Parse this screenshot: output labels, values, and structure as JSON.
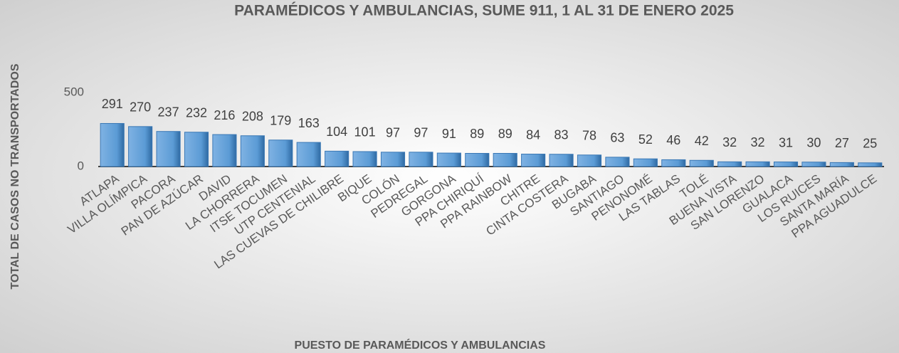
{
  "chart_data": {
    "type": "bar",
    "title": "PARAMÉDICOS Y AMBULANCIAS, SUME 911, 1 AL 31 DE ENERO 2025",
    "x_label": "PUESTO DE PARAMÉDICOS Y AMBULANCIAS",
    "y_label": "TOTAL DE CASOS NO TRANSPORTADOS",
    "categories": [
      "ATLAPA",
      "VILLA OLÍMPICA",
      "PACORA",
      "PAN DE AZÚCAR",
      "DAVID",
      "LA CHORRERA",
      "ITSE TOCUMEN",
      "UTP CENTENIAL",
      "LAS CUEVAS DE CHILIBRE",
      "BIQUE",
      "COLÓN",
      "PEDREGAL",
      "GORGONA",
      "PPA CHIRIQUÍ",
      "PPA RAINBOW",
      "CHITRE",
      "CINTA COSTERA",
      "BUGABA",
      "SANTIAGO",
      "PENONOMÉ",
      "LAS TABLAS",
      "TOLÉ",
      "BUENA VISTA",
      "SAN LORENZO",
      "GUALACA",
      "LOS RUICES",
      "SANTA MARÍA",
      "PPA AGUADULCE"
    ],
    "values": [
      291,
      270,
      237,
      232,
      216,
      208,
      179,
      163,
      104,
      101,
      97,
      97,
      91,
      89,
      89,
      84,
      83,
      78,
      63,
      52,
      46,
      42,
      32,
      32,
      31,
      30,
      27,
      25
    ],
    "color": "#5b9bd5",
    "ylim": [
      0,
      500
    ],
    "yticks": [
      0,
      500
    ]
  }
}
